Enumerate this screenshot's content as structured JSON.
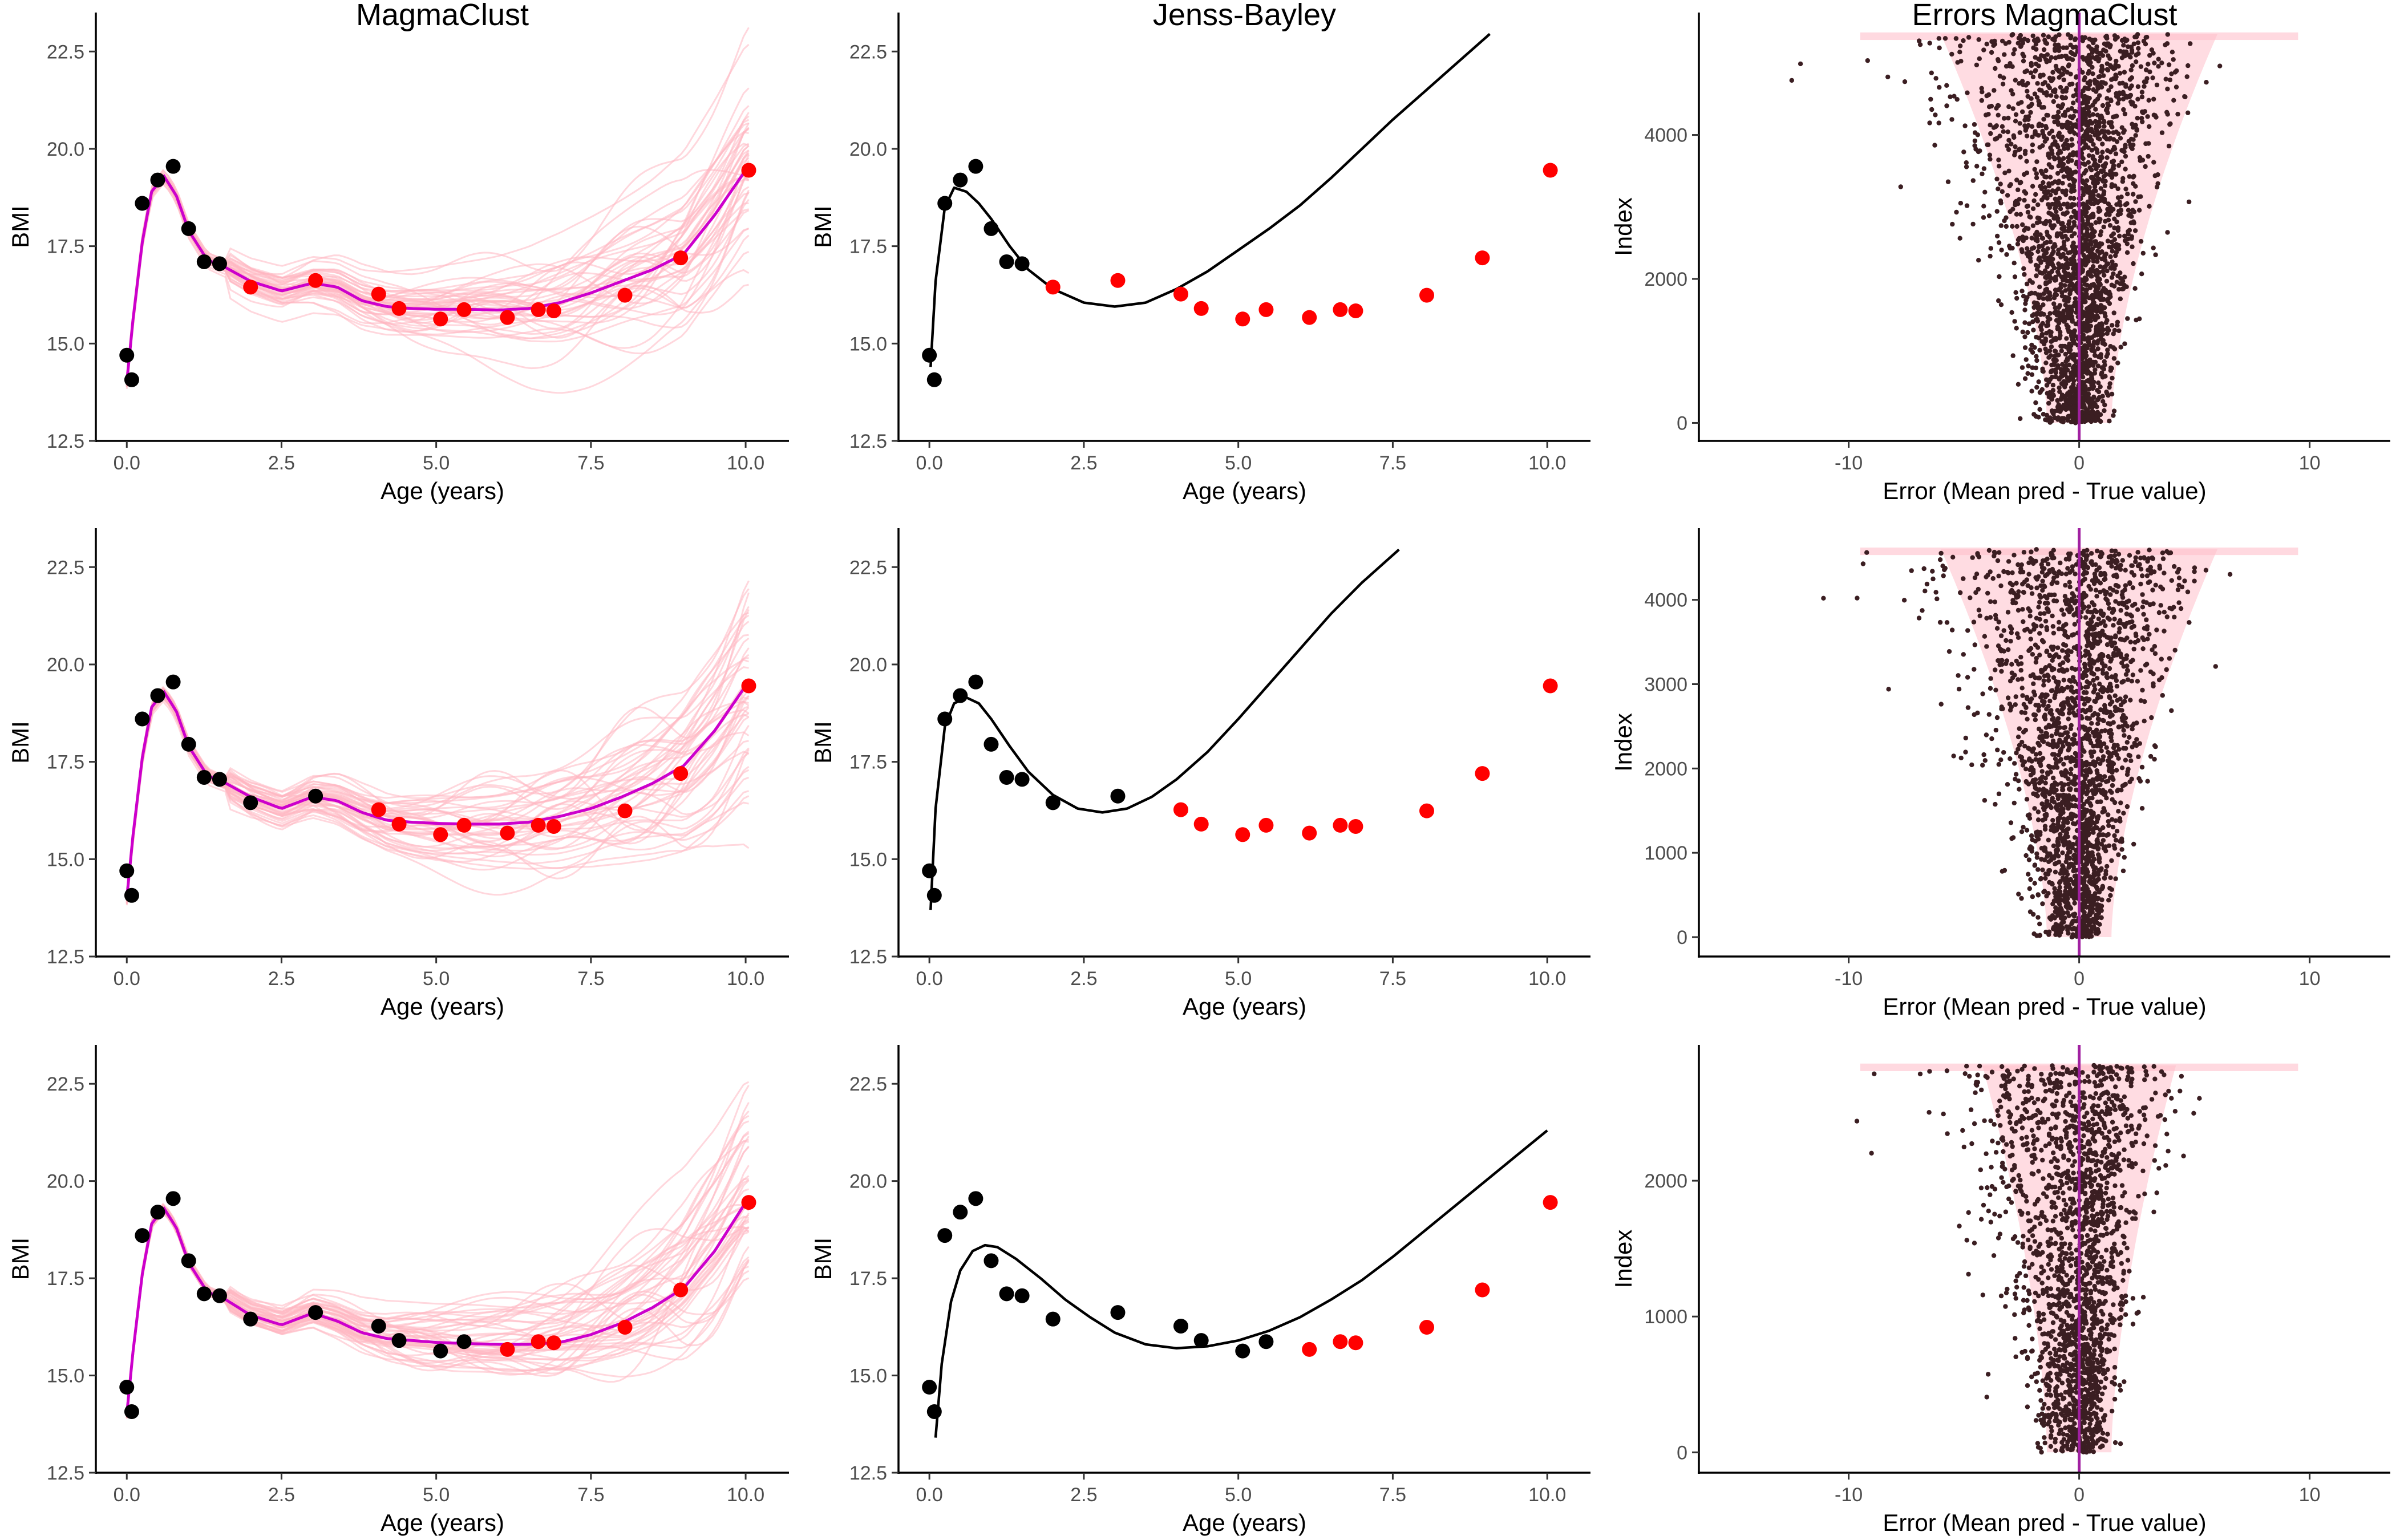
{
  "figure": {
    "column_titles": [
      "MagmaClust",
      "Jenss-Bayley",
      "Errors MagmaClust"
    ],
    "colors": {
      "observed": "#000000",
      "test": "#ff0000",
      "mean_curve": "#cc00cc",
      "samples": "#ffb6c1",
      "band": "#ffc0cb",
      "error_points": "#3b1e22",
      "zero_line": "#a020a0"
    }
  },
  "chart_data": [
    {
      "id": "magma-row1",
      "type": "line",
      "title": "MagmaClust",
      "xlabel": "Age (years)",
      "ylabel": "BMI",
      "xlim": [
        -0.5,
        10.7
      ],
      "ylim": [
        12.5,
        23.5
      ],
      "xticks": [
        0,
        2.5,
        5,
        7.5,
        10
      ],
      "xtick_labels": [
        "0.0",
        "2.5",
        "5.0",
        "7.5",
        "10.0"
      ],
      "yticks": [
        12.5,
        15,
        17.5,
        20,
        22.5
      ],
      "ytick_labels": [
        "12.5",
        "15.0",
        "17.5",
        "20.0",
        "22.5"
      ],
      "observed": {
        "x": [
          0.0,
          0.08,
          0.25,
          0.5,
          0.75,
          1.0,
          1.25,
          1.5
        ],
        "y": [
          14.7,
          14.07,
          18.6,
          19.2,
          19.55,
          17.95,
          17.1,
          17.05
        ]
      },
      "test": {
        "x": [
          2.0,
          3.05,
          4.07,
          4.4,
          5.07,
          5.45,
          6.15,
          6.65,
          6.9,
          8.05,
          8.95,
          10.05
        ],
        "y": [
          16.45,
          16.62,
          16.27,
          15.9,
          15.63,
          15.87,
          15.67,
          15.87,
          15.84,
          16.24,
          17.2,
          19.45
        ]
      },
      "mean_curve": {
        "x": [
          0,
          0.1,
          0.25,
          0.4,
          0.6,
          0.8,
          1.0,
          1.3,
          1.6,
          2.0,
          2.5,
          3.0,
          3.4,
          3.8,
          4.2,
          4.6,
          5.0,
          5.5,
          6.0,
          6.5,
          7.0,
          7.5,
          8.0,
          8.5,
          9.0,
          9.5,
          10.0
        ],
        "y": [
          14.0,
          15.6,
          17.6,
          18.9,
          19.3,
          18.8,
          17.9,
          17.15,
          16.95,
          16.6,
          16.35,
          16.55,
          16.45,
          16.1,
          15.95,
          15.9,
          15.88,
          15.88,
          15.86,
          15.9,
          16.05,
          16.3,
          16.6,
          16.9,
          17.3,
          18.3,
          19.45
        ]
      },
      "samples": {
        "count": 45,
        "spread_start": 0.4,
        "spread_end": 2.6
      }
    },
    {
      "id": "jb-row1",
      "type": "line",
      "title": "Jenss-Bayley",
      "xlabel": "Age (years)",
      "ylabel": "BMI",
      "xlim": [
        -0.5,
        10.7
      ],
      "ylim": [
        12.5,
        23.5
      ],
      "xticks": [
        0,
        2.5,
        5,
        7.5,
        10
      ],
      "xtick_labels": [
        "0.0",
        "2.5",
        "5.0",
        "7.5",
        "10.0"
      ],
      "yticks": [
        12.5,
        15,
        17.5,
        20,
        22.5
      ],
      "ytick_labels": [
        "12.5",
        "15.0",
        "17.5",
        "20.0",
        "22.5"
      ],
      "observed": {
        "x": [
          0.0,
          0.08,
          0.25,
          0.5,
          0.75,
          1.0,
          1.25,
          1.5
        ],
        "y": [
          14.7,
          14.07,
          18.6,
          19.2,
          19.55,
          17.95,
          17.1,
          17.05
        ]
      },
      "test": {
        "x": [
          2.0,
          3.05,
          4.07,
          4.4,
          5.07,
          5.45,
          6.15,
          6.65,
          6.9,
          8.05,
          8.95,
          10.05
        ],
        "y": [
          16.45,
          16.62,
          16.27,
          15.9,
          15.63,
          15.87,
          15.67,
          15.87,
          15.84,
          16.24,
          17.2,
          19.45
        ]
      },
      "fit": {
        "x": [
          0.02,
          0.1,
          0.25,
          0.4,
          0.6,
          0.8,
          1.0,
          1.3,
          1.6,
          2.0,
          2.5,
          3.0,
          3.5,
          4.0,
          4.5,
          5.0,
          5.5,
          6.0,
          6.5,
          7.0,
          7.5,
          8.0,
          8.5,
          9.07
        ],
        "y": [
          14.4,
          16.6,
          18.5,
          19.0,
          18.9,
          18.6,
          18.2,
          17.5,
          16.9,
          16.4,
          16.05,
          15.95,
          16.05,
          16.4,
          16.85,
          17.4,
          17.95,
          18.55,
          19.25,
          20.0,
          20.75,
          21.45,
          22.15,
          22.95
        ]
      }
    },
    {
      "id": "err-row1",
      "type": "scatter",
      "title": "Errors MagmaClust",
      "xlabel": "Error (Mean pred - True value)",
      "ylabel": "Index",
      "xlim": [
        -16.5,
        13.5
      ],
      "ylim": [
        -250,
        5700
      ],
      "xticks": [
        -10,
        0,
        10
      ],
      "xtick_labels": [
        "-10",
        "0",
        "10"
      ],
      "yticks": [
        0,
        2000,
        4000
      ],
      "ytick_labels": [
        "0",
        "2000",
        "4000"
      ],
      "n_points": 5400,
      "max_index": 5400,
      "point_count_drawn": 2600,
      "error_sd": {
        "bottom": 0.55,
        "top": 2.2
      },
      "band_halfwidth": {
        "bottom": 1.4,
        "top": 6.0
      },
      "zero_line_x": 0
    },
    {
      "id": "magma-row2",
      "type": "line",
      "title": "",
      "xlabel": "Age (years)",
      "ylabel": "BMI",
      "xlim": [
        -0.5,
        10.7
      ],
      "ylim": [
        12.5,
        23.5
      ],
      "xticks": [
        0,
        2.5,
        5,
        7.5,
        10
      ],
      "xtick_labels": [
        "0.0",
        "2.5",
        "5.0",
        "7.5",
        "10.0"
      ],
      "yticks": [
        12.5,
        15,
        17.5,
        20,
        22.5
      ],
      "ytick_labels": [
        "12.5",
        "15.0",
        "17.5",
        "20.0",
        "22.5"
      ],
      "observed": {
        "x": [
          0.0,
          0.08,
          0.25,
          0.5,
          0.75,
          1.0,
          1.25,
          1.5,
          2.0,
          3.05
        ],
        "y": [
          14.7,
          14.07,
          18.6,
          19.2,
          19.55,
          17.95,
          17.1,
          17.05,
          16.45,
          16.62
        ]
      },
      "test": {
        "x": [
          4.07,
          4.4,
          5.07,
          5.45,
          6.15,
          6.65,
          6.9,
          8.05,
          8.95,
          10.05
        ],
        "y": [
          16.27,
          15.9,
          15.63,
          15.87,
          15.67,
          15.87,
          15.84,
          16.24,
          17.2,
          19.45
        ]
      },
      "mean_curve": {
        "x": [
          0,
          0.1,
          0.25,
          0.4,
          0.6,
          0.8,
          1.0,
          1.3,
          1.6,
          2.0,
          2.5,
          3.0,
          3.4,
          3.8,
          4.2,
          4.6,
          5.0,
          5.5,
          6.0,
          6.5,
          7.0,
          7.5,
          8.0,
          8.5,
          9.0,
          9.5,
          10.0
        ],
        "y": [
          14.0,
          15.6,
          17.6,
          18.9,
          19.3,
          18.8,
          17.9,
          17.15,
          16.95,
          16.6,
          16.3,
          16.6,
          16.5,
          16.2,
          16.0,
          15.95,
          15.92,
          15.9,
          15.9,
          15.95,
          16.1,
          16.3,
          16.6,
          16.95,
          17.4,
          18.3,
          19.45
        ]
      },
      "samples": {
        "count": 45,
        "spread_start": 0.4,
        "spread_end": 2.6
      }
    },
    {
      "id": "jb-row2",
      "type": "line",
      "title": "",
      "xlabel": "Age (years)",
      "ylabel": "BMI",
      "xlim": [
        -0.5,
        10.7
      ],
      "ylim": [
        12.5,
        23.5
      ],
      "xticks": [
        0,
        2.5,
        5,
        7.5,
        10
      ],
      "xtick_labels": [
        "0.0",
        "2.5",
        "5.0",
        "7.5",
        "10.0"
      ],
      "yticks": [
        12.5,
        15,
        17.5,
        20,
        22.5
      ],
      "ytick_labels": [
        "12.5",
        "15.0",
        "17.5",
        "20.0",
        "22.5"
      ],
      "observed": {
        "x": [
          0.0,
          0.08,
          0.25,
          0.5,
          0.75,
          1.0,
          1.25,
          1.5,
          2.0,
          3.05
        ],
        "y": [
          14.7,
          14.07,
          18.6,
          19.2,
          19.55,
          17.95,
          17.1,
          17.05,
          16.45,
          16.62
        ]
      },
      "test": {
        "x": [
          4.07,
          4.4,
          5.07,
          5.45,
          6.15,
          6.65,
          6.9,
          8.05,
          8.95,
          10.05
        ],
        "y": [
          16.27,
          15.9,
          15.63,
          15.87,
          15.67,
          15.87,
          15.84,
          16.24,
          17.2,
          19.45
        ]
      },
      "fit": {
        "x": [
          0.02,
          0.1,
          0.25,
          0.4,
          0.6,
          0.8,
          1.0,
          1.3,
          1.6,
          2.0,
          2.4,
          2.8,
          3.2,
          3.6,
          4.0,
          4.5,
          5.0,
          5.5,
          6.0,
          6.5,
          7.0,
          7.6
        ],
        "y": [
          13.7,
          16.3,
          18.4,
          19.0,
          19.15,
          19.0,
          18.6,
          17.9,
          17.25,
          16.65,
          16.3,
          16.2,
          16.3,
          16.6,
          17.05,
          17.75,
          18.6,
          19.5,
          20.4,
          21.3,
          22.1,
          22.95
        ]
      }
    },
    {
      "id": "err-row2",
      "type": "scatter",
      "title": "",
      "xlabel": "Error (Mean pred - True value)",
      "ylabel": "Index",
      "xlim": [
        -16.5,
        13.5
      ],
      "ylim": [
        -230,
        4850
      ],
      "xticks": [
        -10,
        0,
        10
      ],
      "xtick_labels": [
        "-10",
        "0",
        "10"
      ],
      "yticks": [
        0,
        1000,
        2000,
        3000,
        4000
      ],
      "ytick_labels": [
        "0",
        "1000",
        "2000",
        "3000",
        "4000"
      ],
      "n_points": 4600,
      "max_index": 4600,
      "point_count_drawn": 2300,
      "error_sd": {
        "bottom": 0.55,
        "top": 2.3
      },
      "band_halfwidth": {
        "bottom": 1.4,
        "top": 6.0
      },
      "zero_line_x": 0
    },
    {
      "id": "magma-row3",
      "type": "line",
      "title": "",
      "xlabel": "Age (years)",
      "ylabel": "BMI",
      "xlim": [
        -0.5,
        10.7
      ],
      "ylim": [
        12.5,
        23.5
      ],
      "xticks": [
        0,
        2.5,
        5,
        7.5,
        10
      ],
      "xtick_labels": [
        "0.0",
        "2.5",
        "5.0",
        "7.5",
        "10.0"
      ],
      "yticks": [
        12.5,
        15,
        17.5,
        20,
        22.5
      ],
      "ytick_labels": [
        "12.5",
        "15.0",
        "17.5",
        "20.0",
        "22.5"
      ],
      "observed": {
        "x": [
          0.0,
          0.08,
          0.25,
          0.5,
          0.75,
          1.0,
          1.25,
          1.5,
          2.0,
          3.05,
          4.07,
          4.4,
          5.07,
          5.45
        ],
        "y": [
          14.7,
          14.07,
          18.6,
          19.2,
          19.55,
          17.95,
          17.1,
          17.05,
          16.45,
          16.62,
          16.27,
          15.9,
          15.63,
          15.87
        ]
      },
      "test": {
        "x": [
          6.15,
          6.65,
          6.9,
          8.05,
          8.95,
          10.05
        ],
        "y": [
          15.67,
          15.87,
          15.84,
          16.24,
          17.2,
          19.45
        ]
      },
      "mean_curve": {
        "x": [
          0,
          0.1,
          0.25,
          0.4,
          0.6,
          0.8,
          1.0,
          1.3,
          1.6,
          2.0,
          2.5,
          3.0,
          3.4,
          3.8,
          4.2,
          4.6,
          5.0,
          5.5,
          6.0,
          6.5,
          7.0,
          7.5,
          8.0,
          8.5,
          9.0,
          9.5,
          10.0
        ],
        "y": [
          14.0,
          15.6,
          17.6,
          18.9,
          19.3,
          18.8,
          17.9,
          17.15,
          16.95,
          16.55,
          16.3,
          16.6,
          16.4,
          16.1,
          15.95,
          15.9,
          15.85,
          15.82,
          15.8,
          15.8,
          15.85,
          16.05,
          16.35,
          16.75,
          17.25,
          18.2,
          19.45
        ]
      },
      "samples": {
        "count": 45,
        "spread_start": 0.3,
        "spread_end": 2.4
      }
    },
    {
      "id": "jb-row3",
      "type": "line",
      "title": "",
      "xlabel": "Age (years)",
      "ylabel": "BMI",
      "xlim": [
        -0.5,
        10.7
      ],
      "ylim": [
        12.5,
        23.5
      ],
      "xticks": [
        0,
        2.5,
        5,
        7.5,
        10
      ],
      "xtick_labels": [
        "0.0",
        "2.5",
        "5.0",
        "7.5",
        "10.0"
      ],
      "yticks": [
        12.5,
        15,
        17.5,
        20,
        22.5
      ],
      "ytick_labels": [
        "12.5",
        "15.0",
        "17.5",
        "20.0",
        "22.5"
      ],
      "observed": {
        "x": [
          0.0,
          0.08,
          0.25,
          0.5,
          0.75,
          1.0,
          1.25,
          1.5,
          2.0,
          3.05,
          4.07,
          4.4,
          5.07,
          5.45
        ],
        "y": [
          14.7,
          14.07,
          18.6,
          19.2,
          19.55,
          17.95,
          17.1,
          17.05,
          16.45,
          16.62,
          16.27,
          15.9,
          15.63,
          15.87
        ]
      },
      "test": {
        "x": [
          6.15,
          6.65,
          6.9,
          8.05,
          8.95,
          10.05
        ],
        "y": [
          15.67,
          15.87,
          15.84,
          16.24,
          17.2,
          19.45
        ]
      },
      "fit": {
        "x": [
          0.1,
          0.2,
          0.35,
          0.5,
          0.7,
          0.9,
          1.1,
          1.4,
          1.8,
          2.2,
          2.6,
          3.0,
          3.5,
          4.0,
          4.5,
          5.0,
          5.5,
          6.0,
          6.5,
          7.0,
          7.5,
          8.0,
          8.5,
          9.0,
          9.5,
          10.0
        ],
        "y": [
          13.4,
          15.3,
          16.9,
          17.7,
          18.2,
          18.35,
          18.3,
          18.0,
          17.5,
          16.95,
          16.5,
          16.1,
          15.8,
          15.7,
          15.75,
          15.9,
          16.15,
          16.5,
          16.95,
          17.45,
          18.05,
          18.7,
          19.35,
          20.0,
          20.65,
          21.3
        ]
      }
    },
    {
      "id": "err-row3",
      "type": "scatter",
      "title": "",
      "xlabel": "Error (Mean pred - True value)",
      "ylabel": "Index",
      "xlim": [
        -16.5,
        13.5
      ],
      "ylim": [
        -150,
        3000
      ],
      "xticks": [
        -10,
        0,
        10
      ],
      "xtick_labels": [
        "-10",
        "0",
        "10"
      ],
      "yticks": [
        0,
        1000,
        2000
      ],
      "ytick_labels": [
        "0",
        "1000",
        "2000"
      ],
      "n_points": 2850,
      "max_index": 2850,
      "point_count_drawn": 1900,
      "error_sd": {
        "bottom": 0.55,
        "top": 1.9
      },
      "band_halfwidth": {
        "bottom": 1.4,
        "top": 4.2
      },
      "zero_line_x": 0
    }
  ]
}
